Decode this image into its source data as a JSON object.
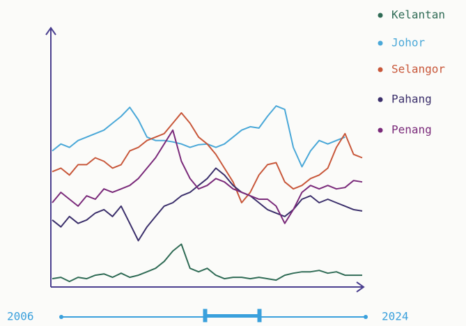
{
  "chart_data": {
    "type": "line",
    "x": [
      2006,
      2006.5,
      2007,
      2007.5,
      2008,
      2008.5,
      2009,
      2009.5,
      2010,
      2010.5,
      2011,
      2011.5,
      2012,
      2012.5,
      2013,
      2013.5,
      2014,
      2014.5,
      2015,
      2015.5,
      2016,
      2016.5,
      2017,
      2017.5,
      2018,
      2018.5,
      2019,
      2019.5,
      2020,
      2020.5,
      2021,
      2021.5,
      2022,
      2022.5,
      2023,
      2023.5,
      2024
    ],
    "xlim": [
      2006,
      2024
    ],
    "xticks": [
      2006,
      2024
    ],
    "ylim": [
      0,
      370
    ],
    "series": [
      {
        "name": "Kelantan",
        "color": "#2f6b55",
        "values": [
          12,
          14,
          8,
          14,
          12,
          17,
          19,
          14,
          20,
          14,
          17,
          22,
          27,
          37,
          52,
          62,
          27,
          22,
          27,
          17,
          12,
          14,
          14,
          12,
          14,
          12,
          10,
          17,
          20,
          22,
          22,
          24,
          20,
          22,
          17,
          17,
          17
        ]
      },
      {
        "name": "Johor",
        "color": "#4aa8d8",
        "values": [
          197,
          207,
          202,
          212,
          217,
          222,
          227,
          237,
          247,
          260,
          242,
          217,
          212,
          212,
          210,
          207,
          202,
          206,
          207,
          202,
          207,
          217,
          227,
          232,
          230,
          247,
          262,
          257,
          202,
          174,
          197,
          212,
          207,
          212,
          217,
          null,
          null
        ]
      },
      {
        "name": "Selangor",
        "color": "#c8573a",
        "values": [
          167,
          172,
          162,
          177,
          177,
          187,
          182,
          172,
          177,
          197,
          202,
          212,
          217,
          222,
          237,
          252,
          237,
          217,
          207,
          192,
          172,
          152,
          122,
          137,
          162,
          177,
          180,
          152,
          142,
          147,
          157,
          162,
          172,
          202,
          222,
          192,
          187
        ]
      },
      {
        "name": "Pahang",
        "color": "#3b2f6b",
        "values": [
          97,
          87,
          102,
          92,
          97,
          107,
          112,
          102,
          117,
          92,
          67,
          87,
          102,
          117,
          122,
          132,
          137,
          147,
          157,
          172,
          162,
          147,
          137,
          132,
          122,
          112,
          107,
          102,
          112,
          127,
          132,
          122,
          127,
          122,
          117,
          112,
          110
        ]
      },
      {
        "name": "Penang",
        "color": "#7a2a7a",
        "values": [
          122,
          137,
          127,
          117,
          132,
          127,
          142,
          137,
          142,
          147,
          157,
          172,
          187,
          207,
          227,
          182,
          157,
          142,
          147,
          157,
          152,
          142,
          137,
          132,
          127,
          127,
          117,
          92,
          112,
          137,
          147,
          142,
          147,
          142,
          144,
          154,
          152
        ]
      }
    ]
  }
}
